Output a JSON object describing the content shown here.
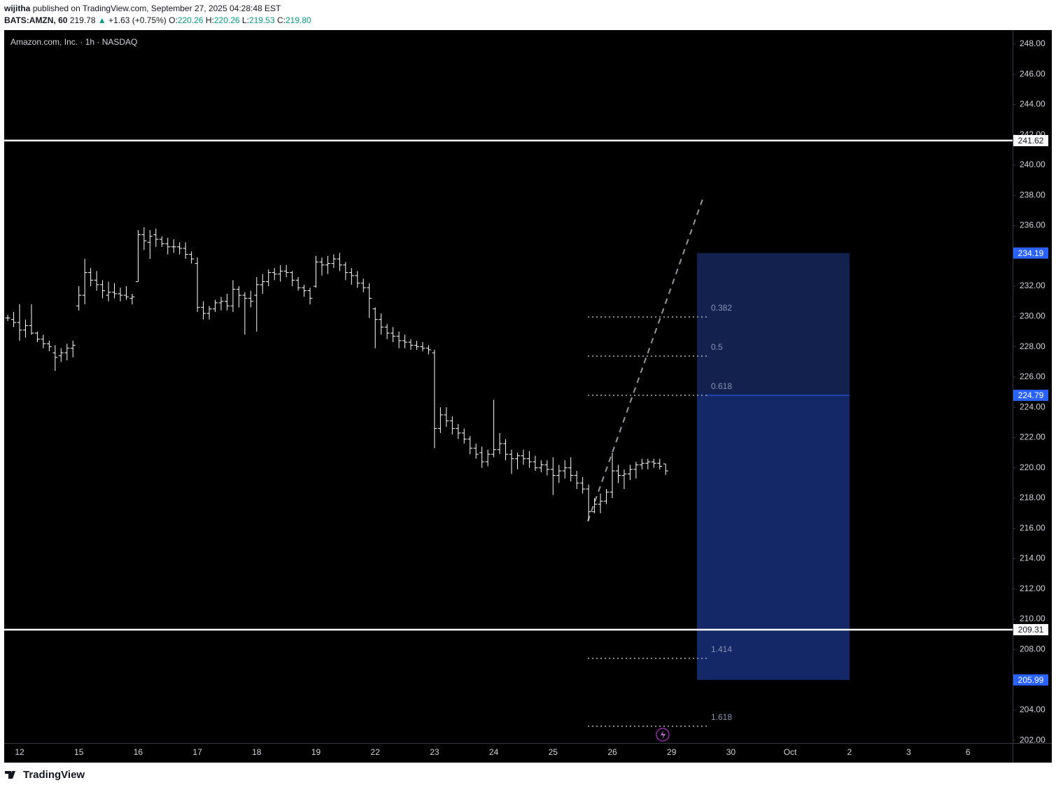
{
  "header": {
    "author": "wijitha",
    "published": "published on TradingView.com, September 27, 2025 04:28:48 EST",
    "symbol": "BATS:AMZN, 60",
    "last": "219.78",
    "arrow": "▲",
    "change": "+1.63 (+0.75%)",
    "o_label": "O:",
    "o": "220.26",
    "h_label": "H:",
    "h": "220.26",
    "l_label": "L:",
    "l": "219.53",
    "c_label": "C:",
    "c": "219.80"
  },
  "footer": {
    "brand": "TradingView"
  },
  "chart_data": {
    "type": "ohlc",
    "title": "Amazon.com, Inc. · 1h · NASDAQ",
    "color": "#ffffff",
    "categories": [
      null,
      null,
      "12",
      null,
      null,
      null,
      null,
      null,
      null,
      null,
      null,
      null,
      "15",
      null,
      null,
      null,
      null,
      null,
      null,
      null,
      null,
      null,
      "16",
      null,
      null,
      null,
      null,
      null,
      null,
      null,
      null,
      null,
      "17",
      null,
      null,
      null,
      null,
      null,
      null,
      null,
      null,
      null,
      "18",
      null,
      null,
      null,
      null,
      null,
      null,
      null,
      null,
      null,
      "19",
      null,
      null,
      null,
      null,
      null,
      null,
      null,
      null,
      null,
      "22",
      null,
      null,
      null,
      null,
      null,
      null,
      null,
      null,
      null,
      "23",
      null,
      null,
      null,
      null,
      null,
      null,
      null,
      null,
      null,
      "24",
      null,
      null,
      null,
      null,
      null,
      null,
      null,
      null,
      null,
      "25",
      null,
      null,
      null,
      null,
      null,
      null,
      null,
      null,
      null,
      "26",
      null,
      null,
      null,
      null,
      null,
      null,
      null,
      null,
      null,
      "29",
      null,
      null,
      null,
      null,
      null,
      null,
      null,
      null,
      null,
      "30",
      null,
      null,
      null,
      null,
      null,
      null,
      null,
      null,
      null,
      "Oct",
      null,
      null,
      null,
      null,
      null,
      null,
      null,
      null,
      null,
      "2",
      null,
      null,
      null,
      null,
      null,
      null,
      null,
      null,
      null,
      "3",
      null,
      null,
      null,
      null,
      null,
      null,
      null,
      null,
      null,
      "6",
      null,
      null,
      null,
      null,
      null,
      null,
      null
    ],
    "open": [
      229.9,
      229.8,
      229.6,
      229.1,
      229.4,
      228.9,
      228.5,
      228.2,
      227.6,
      227.4,
      227.6,
      227.9,
      230.7,
      231.4,
      232.9,
      232.4,
      232.1,
      231.4,
      231.6,
      231.5,
      231.4,
      231.2,
      232.3,
      235.4,
      234.9,
      235.4,
      235.1,
      234.8,
      234.6,
      234.6,
      234.5,
      234.1,
      233.5,
      230.6,
      230.2,
      230.5,
      230.9,
      231.0,
      230.7,
      231.8,
      231.4,
      231.2,
      231.4,
      232.1,
      232.3,
      232.9,
      232.8,
      233.0,
      232.9,
      232.4,
      231.9,
      231.7,
      232.0,
      233.6,
      233.4,
      233.5,
      233.8,
      233.4,
      232.9,
      232.7,
      232.2,
      231.9,
      230.5,
      229.8,
      229.3,
      228.9,
      228.7,
      228.4,
      228.3,
      228.1,
      228.0,
      227.9,
      227.6,
      222.6,
      223.5,
      223.1,
      222.6,
      222.3,
      221.9,
      221.3,
      221.0,
      220.4,
      220.9,
      221.2,
      221.6,
      220.9,
      220.6,
      220.8,
      220.6,
      220.4,
      220.0,
      220.2,
      219.9,
      219.5,
      219.8,
      220.0,
      219.5,
      219.0,
      218.6,
      217.1,
      217.6,
      217.8,
      218.4,
      219.8,
      219.5,
      219.6,
      219.9,
      220.2,
      220.3,
      220.4,
      220.3,
      220.26,
      null,
      null,
      null,
      null,
      null,
      null,
      null,
      null,
      null,
      null,
      null,
      null,
      null,
      null,
      null,
      null,
      null,
      null,
      null,
      null,
      null,
      null,
      null,
      null,
      null,
      null,
      null,
      null,
      null,
      null,
      null,
      null,
      null,
      null,
      null,
      null,
      null,
      null,
      null,
      null,
      null,
      null,
      null,
      null,
      null,
      null,
      null,
      null,
      null,
      null,
      null,
      null,
      null,
      null,
      null,
      null,
      null,
      null
    ],
    "high": [
      230.1,
      230.3,
      230.8,
      229.8,
      230.8,
      229.0,
      228.8,
      228.4,
      228.1,
      227.9,
      228.2,
      228.4,
      232.0,
      233.8,
      233.2,
      233.0,
      232.4,
      232.3,
      232.2,
      231.9,
      232.0,
      231.5,
      235.7,
      235.9,
      235.7,
      235.8,
      235.3,
      235.2,
      235.1,
      234.9,
      234.9,
      234.3,
      233.9,
      231.0,
      230.7,
      231.1,
      231.3,
      231.5,
      232.4,
      232.0,
      231.6,
      231.7,
      232.6,
      232.8,
      233.1,
      233.2,
      233.4,
      233.4,
      233.0,
      232.6,
      232.1,
      231.9,
      234.0,
      233.9,
      234.0,
      234.1,
      234.2,
      233.6,
      233.2,
      233.0,
      232.5,
      232.2,
      230.6,
      230.2,
      229.5,
      229.3,
      229.0,
      228.8,
      228.5,
      228.4,
      228.3,
      228.1,
      227.8,
      224.0,
      224.0,
      223.4,
      222.9,
      222.6,
      222.1,
      221.6,
      221.4,
      221.2,
      224.5,
      222.3,
      221.9,
      221.2,
      221.0,
      221.2,
      221.1,
      220.8,
      220.5,
      220.5,
      220.7,
      220.2,
      220.5,
      220.7,
      219.8,
      219.4,
      218.9,
      218.0,
      218.3,
      218.6,
      221.0,
      220.2,
      219.9,
      220.2,
      220.4,
      220.6,
      220.6,
      220.6,
      220.6,
      220.26,
      null,
      null,
      null,
      null,
      null,
      null,
      null,
      null,
      null,
      null,
      null,
      null,
      null,
      null,
      null,
      null,
      null,
      null,
      null,
      null,
      null,
      null,
      null,
      null,
      null,
      null,
      null,
      null,
      null,
      null,
      null,
      null,
      null,
      null,
      null,
      null,
      null,
      null,
      null,
      null,
      null,
      null,
      null,
      null,
      null,
      null,
      null,
      null,
      null,
      null,
      null,
      null,
      null,
      null,
      null,
      null,
      null,
      null
    ],
    "low": [
      229.7,
      229.3,
      228.4,
      228.6,
      228.8,
      228.3,
      227.9,
      227.7,
      226.4,
      227.0,
      227.1,
      227.3,
      230.4,
      230.8,
      232.0,
      231.7,
      231.2,
      231.0,
      231.2,
      231.0,
      231.1,
      230.8,
      232.3,
      234.4,
      233.8,
      234.6,
      234.6,
      234.1,
      234.2,
      234.1,
      233.8,
      233.5,
      230.3,
      229.8,
      229.8,
      230.3,
      230.4,
      230.4,
      230.3,
      230.6,
      228.8,
      230.6,
      229.0,
      231.5,
      232.0,
      232.4,
      232.3,
      232.6,
      232.0,
      231.7,
      231.3,
      230.8,
      231.9,
      232.7,
      232.8,
      233.2,
      233.0,
      232.4,
      232.1,
      231.9,
      231.6,
      229.9,
      227.9,
      228.8,
      228.5,
      228.3,
      227.9,
      227.9,
      227.8,
      227.8,
      227.7,
      227.5,
      221.3,
      222.3,
      222.7,
      222.2,
      221.9,
      221.6,
      220.9,
      220.6,
      220.0,
      220.1,
      220.7,
      220.9,
      220.5,
      219.6,
      219.9,
      220.2,
      220.0,
      219.8,
      219.7,
      219.5,
      218.2,
      219.0,
      219.3,
      219.1,
      218.6,
      218.3,
      216.5,
      217.0,
      217.0,
      217.6,
      218.0,
      219.0,
      218.6,
      219.2,
      219.3,
      219.9,
      219.9,
      220.0,
      219.9,
      219.53,
      null,
      null,
      null,
      null,
      null,
      null,
      null,
      null,
      null,
      null,
      null,
      null,
      null,
      null,
      null,
      null,
      null,
      null,
      null,
      null,
      null,
      null,
      null,
      null,
      null,
      null,
      null,
      null,
      null,
      null,
      null,
      null,
      null,
      null,
      null,
      null,
      null,
      null,
      null,
      null,
      null,
      null,
      null,
      null,
      null,
      null,
      null,
      null,
      null,
      null,
      null,
      null,
      null,
      null,
      null,
      null,
      null,
      null
    ],
    "close": [
      229.9,
      229.6,
      229.1,
      229.4,
      228.9,
      228.5,
      228.2,
      228.0,
      227.3,
      227.6,
      227.9,
      228.1,
      231.4,
      232.9,
      232.4,
      232.1,
      231.7,
      231.6,
      231.5,
      231.4,
      231.3,
      231.3,
      235.4,
      235.0,
      235.3,
      235.1,
      234.8,
      234.6,
      234.6,
      234.5,
      234.1,
      233.8,
      230.6,
      230.2,
      230.5,
      230.9,
      231.0,
      230.7,
      231.8,
      231.4,
      231.2,
      231.0,
      232.1,
      232.3,
      232.9,
      232.8,
      233.0,
      232.9,
      232.4,
      231.9,
      231.7,
      231.2,
      233.6,
      233.4,
      233.5,
      233.8,
      233.4,
      232.9,
      232.7,
      232.2,
      231.9,
      231.2,
      229.8,
      229.3,
      228.9,
      228.7,
      228.4,
      228.3,
      228.1,
      228.0,
      227.9,
      227.8,
      222.6,
      223.5,
      223.1,
      222.6,
      222.3,
      221.9,
      221.3,
      220.9,
      220.4,
      220.9,
      221.2,
      221.6,
      220.9,
      220.6,
      220.8,
      220.6,
      220.4,
      220.0,
      220.2,
      219.9,
      219.5,
      219.8,
      220.0,
      219.5,
      219.0,
      218.6,
      217.1,
      217.6,
      217.8,
      218.4,
      219.8,
      219.5,
      219.6,
      219.9,
      220.2,
      220.3,
      220.4,
      220.3,
      220.1,
      219.8,
      null,
      null,
      null,
      null,
      null,
      null,
      null,
      null,
      null,
      null,
      null,
      null,
      null,
      null,
      null,
      null,
      null,
      null,
      null,
      null,
      null,
      null,
      null,
      null,
      null,
      null,
      null,
      null,
      null,
      null,
      null,
      null,
      null,
      null,
      null,
      null,
      null,
      null,
      null,
      null,
      null,
      null,
      null,
      null,
      null,
      null,
      null,
      null,
      null,
      null,
      null,
      null,
      null,
      null,
      null,
      null,
      null,
      null
    ],
    "ylim": [
      201.82,
      248.92
    ],
    "yticks": [
      {
        "value": 202,
        "label": "202.00"
      },
      {
        "value": 204,
        "label": "204.00"
      },
      {
        "value": 206,
        "label": "206.00"
      },
      {
        "value": 208,
        "label": "208.00"
      },
      {
        "value": 210,
        "label": "210.00"
      },
      {
        "value": 212,
        "label": "212.00"
      },
      {
        "value": 214,
        "label": "214.00"
      },
      {
        "value": 216,
        "label": "216.00"
      },
      {
        "value": 218,
        "label": "218.00"
      },
      {
        "value": 220,
        "label": "220.00"
      },
      {
        "value": 222,
        "label": "222.00"
      },
      {
        "value": 224,
        "label": "224.00"
      },
      {
        "value": 226,
        "label": "226.00"
      },
      {
        "value": 228,
        "label": "228.00"
      },
      {
        "value": 230,
        "label": "230.00"
      },
      {
        "value": 232,
        "label": "232.00"
      },
      {
        "value": 234,
        "label": "234.00"
      },
      {
        "value": 236,
        "label": "236.00"
      },
      {
        "value": 238,
        "label": "238.00"
      },
      {
        "value": 240,
        "label": "240.00"
      },
      {
        "value": 242,
        "label": "242.00"
      },
      {
        "value": 244,
        "label": "244.00"
      },
      {
        "value": 246,
        "label": "246.00"
      },
      {
        "value": 248,
        "label": "248.00"
      }
    ],
    "horizontal_lines": [
      241.62,
      209.31
    ],
    "price_labels": [
      234.19,
      224.79,
      205.99
    ],
    "fib_levels": [
      {
        "level": 0.382,
        "price": 229.97
      },
      {
        "level": 0.5,
        "price": 227.38
      },
      {
        "level": 0.618,
        "price": 224.79
      },
      {
        "level": 1.414,
        "price": 207.41
      },
      {
        "level": 1.618,
        "price": 202.93
      }
    ],
    "trend_line": [
      216.47,
      237.88
    ]
  }
}
